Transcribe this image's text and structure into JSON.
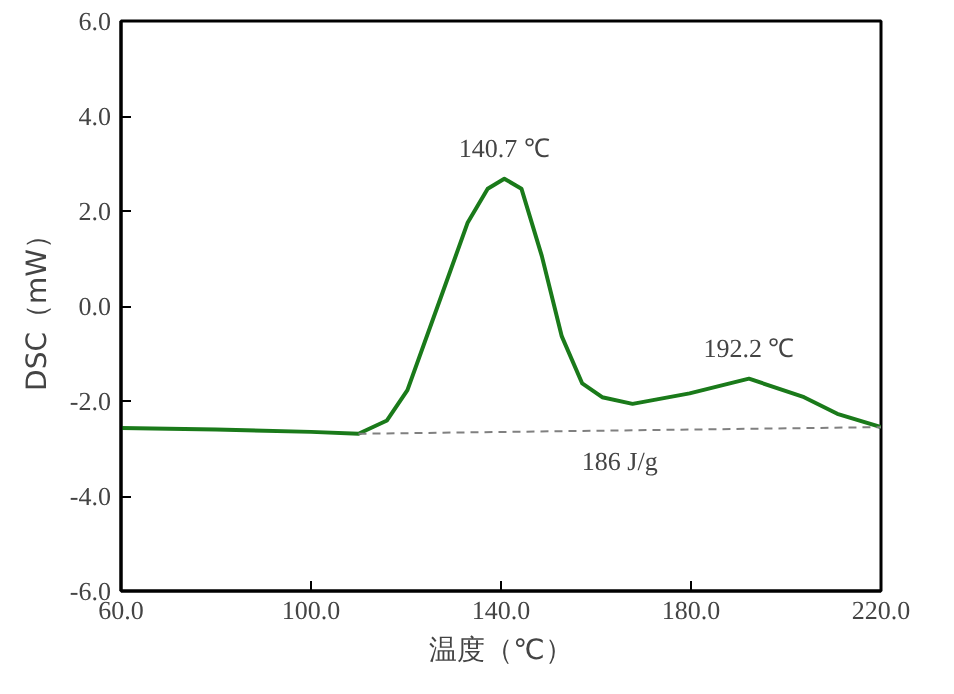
{
  "chart_data": {
    "type": "line",
    "xlabel": "温度（℃）",
    "ylabel": "DSC（mW）",
    "xlim": [
      60,
      220
    ],
    "ylim": [
      -6,
      6
    ],
    "xticks": [
      {
        "value": 60,
        "label": "60.0"
      },
      {
        "value": 100,
        "label": "100.0"
      },
      {
        "value": 140,
        "label": "140.0"
      },
      {
        "value": 180,
        "label": "180.0"
      },
      {
        "value": 220,
        "label": "220.0"
      }
    ],
    "yticks": [
      {
        "value": -6,
        "label": "-6.0"
      },
      {
        "value": -4,
        "label": "-4.0"
      },
      {
        "value": -2,
        "label": "-2.0"
      },
      {
        "value": 0,
        "label": "0.0"
      },
      {
        "value": 2,
        "label": "2.0"
      },
      {
        "value": 4,
        "label": "4.0"
      },
      {
        "value": 6,
        "label": "6.0"
      }
    ],
    "grid": false,
    "series": [
      {
        "color": "#1a7a1a",
        "line_style": "solid",
        "x": [
          60,
          80,
          100,
          110,
          116,
          120.3,
          127.4,
          133,
          137.2,
          140.7,
          144.3,
          148.6,
          152.8,
          157.1,
          161.3,
          167.7,
          179.7,
          192.2,
          203.8,
          210.8,
          220
        ],
        "values": [
          -2.57,
          -2.6,
          -2.65,
          -2.69,
          -2.41,
          -1.77,
          0.2,
          1.76,
          2.47,
          2.68,
          2.47,
          1.05,
          -0.64,
          -1.63,
          -1.92,
          -2.06,
          -1.84,
          -1.53,
          -1.92,
          -2.27,
          -2.55
        ]
      },
      {
        "color": "#808080",
        "line_style": "dashed",
        "x": [
          110,
          220
        ],
        "values": [
          -2.69,
          -2.55
        ]
      }
    ],
    "annotations": [
      {
        "text": "140.7 ℃",
        "x": 140.7,
        "y": 2.68
      },
      {
        "text": "192.2 ℃",
        "x": 192.2,
        "y": -1.53
      },
      {
        "text": "186 J/g",
        "x": 165,
        "y": -2.62
      }
    ]
  }
}
